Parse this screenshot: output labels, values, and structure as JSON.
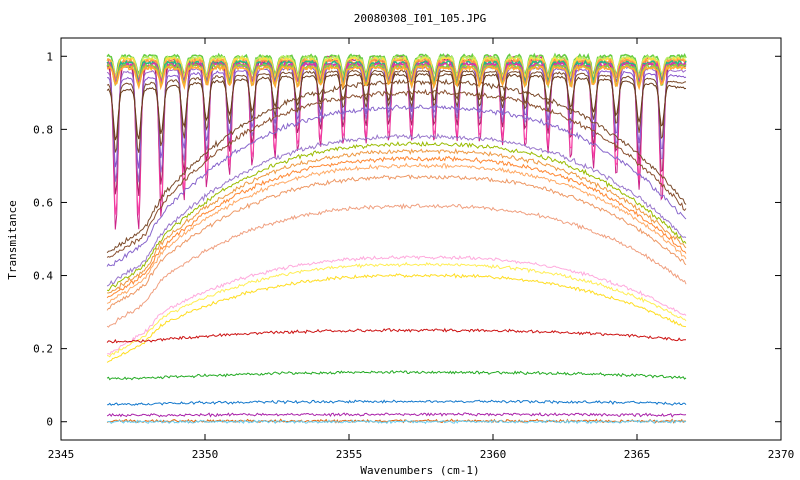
{
  "chart_data": {
    "type": "line",
    "title": "20080308_I01_105.JPG",
    "xlabel": "Wavenumbers (cm-1)",
    "ylabel": "Transmitance",
    "xlim": [
      2345,
      2370
    ],
    "ylim": [
      -0.05,
      1.05
    ],
    "x_ticks": [
      2345,
      2350,
      2355,
      2360,
      2365,
      2370
    ],
    "x_tick_labels": [
      "2345",
      "2350",
      "2355",
      "2360",
      "2365",
      "2370"
    ],
    "y_ticks": [
      0,
      0.2,
      0.4,
      0.6,
      0.8,
      1
    ],
    "y_tick_labels": [
      "0",
      "0.2",
      "0.4",
      "0.6",
      "0.8",
      "1"
    ],
    "grid": false,
    "legend": "none",
    "x_range_data": [
      2346.6,
      2366.7
    ],
    "series": [
      {
        "color": "#cc2288",
        "baseline": 1.0,
        "dip": 0.85,
        "style": "lines"
      },
      {
        "color": "#ff44aa",
        "baseline": 0.99,
        "dip": 0.75,
        "style": "lines"
      },
      {
        "color": "#aa2266",
        "baseline": 0.99,
        "dip": 0.65,
        "style": "lines"
      },
      {
        "color": "#9966cc",
        "baseline": 0.98,
        "dip": 0.55,
        "style": "lines"
      },
      {
        "color": "#8855cc",
        "baseline": 0.97,
        "dip": 0.45,
        "style": "lines"
      },
      {
        "color": "#7a4a2a",
        "baseline": 0.96,
        "dip": 0.35,
        "style": "lines"
      },
      {
        "color": "#6a3a1a",
        "baseline": 0.95,
        "dip": 0.25,
        "style": "lines"
      },
      {
        "color": "#7a4a2a",
        "baseline": 0.93,
        "dip": 0.18,
        "style": "lines"
      },
      {
        "color": "#8a5030",
        "baseline": 0.9,
        "dip": 0.12,
        "style": "lines"
      },
      {
        "color": "#8866cc",
        "baseline": 0.86,
        "dip": 0.08,
        "style": "lines"
      },
      {
        "color": "#99bb00",
        "baseline": 0.76,
        "dip": 0.03,
        "style": "lines"
      },
      {
        "color": "#9977cc",
        "baseline": 0.78,
        "dip": 0.03,
        "style": "lines"
      },
      {
        "color": "#ee9944",
        "baseline": 0.74,
        "dip": 0.02,
        "style": "lines"
      },
      {
        "color": "#ff8833",
        "baseline": 0.72,
        "dip": 0.02,
        "style": "lines"
      },
      {
        "color": "#ffaa66",
        "baseline": 0.7,
        "dip": 0.02,
        "style": "lines"
      },
      {
        "color": "#ee9966",
        "baseline": 0.67,
        "dip": 0.02,
        "style": "lines"
      },
      {
        "color": "#f0a080",
        "baseline": 0.59,
        "dip": 0.01,
        "style": "lines"
      },
      {
        "color": "#ffaadd",
        "baseline": 0.45,
        "dip": 0.01,
        "style": "lines"
      },
      {
        "color": "#ffee55",
        "baseline": 0.43,
        "dip": 0.01,
        "style": "lines"
      },
      {
        "color": "#ffdd22",
        "baseline": 0.4,
        "dip": 0.01,
        "style": "lines"
      },
      {
        "color": "#cc1111",
        "baseline": 0.25,
        "dip": 0.0,
        "style": "lines"
      },
      {
        "color": "#22aa22",
        "baseline": 0.135,
        "dip": 0.0,
        "style": "lines"
      },
      {
        "color": "#1177cc",
        "baseline": 0.055,
        "dip": 0.0,
        "style": "lines"
      },
      {
        "color": "#aa22aa",
        "baseline": 0.02,
        "dip": 0.0,
        "style": "lines"
      },
      {
        "color": "#dd6611",
        "baseline": 0.002,
        "dip": 0.0,
        "style": "lines"
      },
      {
        "color": "#66ccee",
        "baseline": 0.0,
        "dip": 0.0,
        "style": "lines"
      }
    ],
    "top_cluster_colors": [
      "#66cc44",
      "#bbee66",
      "#ffdd44",
      "#ff9944",
      "#22bb88",
      "#dd33aa",
      "#88cc44",
      "#ffaa33"
    ]
  }
}
